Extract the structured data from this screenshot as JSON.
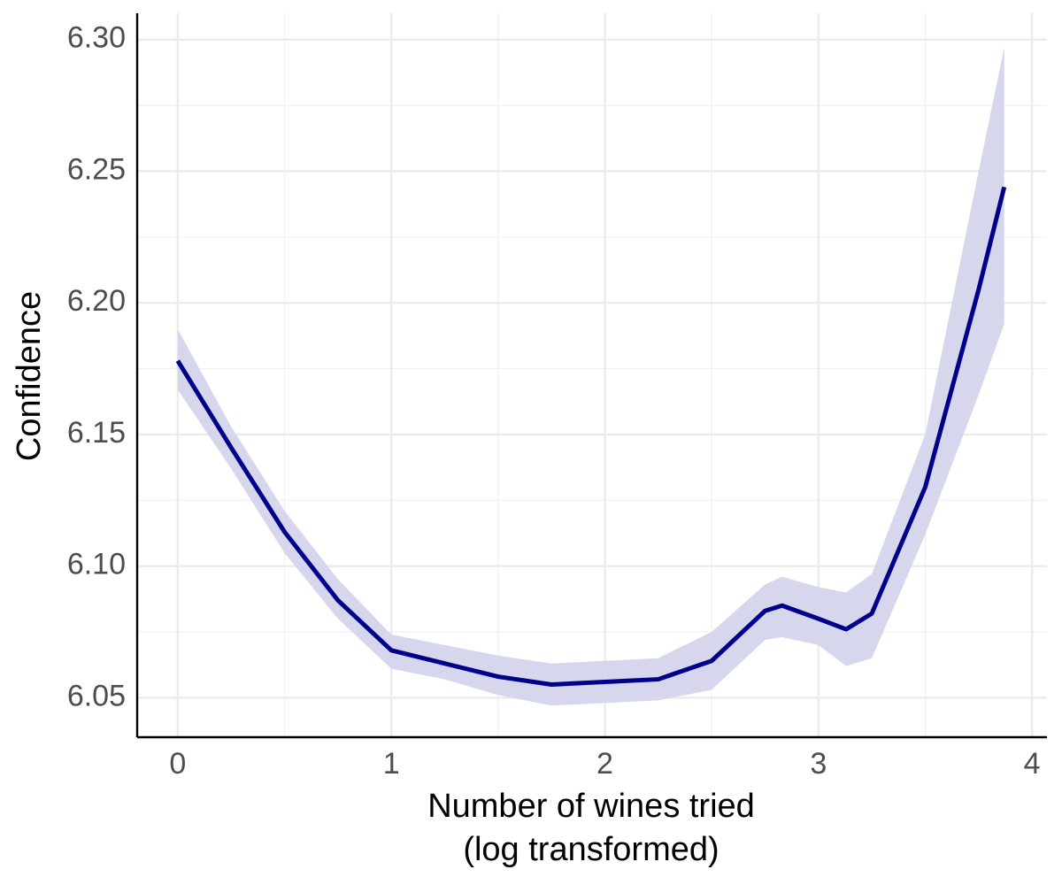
{
  "chart_data": {
    "type": "line",
    "x_label": [
      "Number of wines tried",
      "(log transformed)"
    ],
    "y_label": "Confidence",
    "x": [
      0,
      0.25,
      0.5,
      0.75,
      1.0,
      1.25,
      1.5,
      1.75,
      2.0,
      2.25,
      2.5,
      2.75,
      2.83,
      3.0,
      3.13,
      3.25,
      3.5,
      3.75,
      3.87
    ],
    "series": [
      {
        "color": "#00008b",
        "band_color": "#d6d7ed",
        "values": [
          6.178,
          6.145,
          6.113,
          6.087,
          6.068,
          6.063,
          6.058,
          6.055,
          6.056,
          6.057,
          6.064,
          6.083,
          6.085,
          6.08,
          6.076,
          6.082,
          6.13,
          6.205,
          6.244
        ],
        "lower": [
          6.167,
          6.137,
          6.105,
          6.08,
          6.061,
          6.057,
          6.051,
          6.047,
          6.048,
          6.049,
          6.053,
          6.072,
          6.073,
          6.07,
          6.062,
          6.065,
          6.112,
          6.165,
          6.192
        ],
        "upper": [
          6.19,
          6.153,
          6.121,
          6.095,
          6.074,
          6.07,
          6.066,
          6.063,
          6.064,
          6.065,
          6.075,
          6.093,
          6.096,
          6.092,
          6.09,
          6.097,
          6.15,
          6.25,
          6.297
        ]
      }
    ],
    "xlim": [
      -0.19,
      4.07
    ],
    "ylim": [
      6.035,
      6.31
    ],
    "xticks": [
      0,
      1,
      2,
      3,
      4
    ],
    "yticks": [
      {
        "value": 6.05,
        "label": "6.05"
      },
      {
        "value": 6.1,
        "label": "6.10"
      },
      {
        "value": 6.15,
        "label": "6.15"
      },
      {
        "value": 6.2,
        "label": "6.20"
      },
      {
        "value": 6.25,
        "label": "6.25"
      },
      {
        "value": 6.3,
        "label": "6.30"
      }
    ],
    "x_minor_grid": [
      0.5,
      1.5,
      2.5,
      3.5
    ],
    "y_minor_grid": [
      6.075,
      6.125,
      6.175,
      6.225,
      6.275
    ],
    "grid": true
  }
}
